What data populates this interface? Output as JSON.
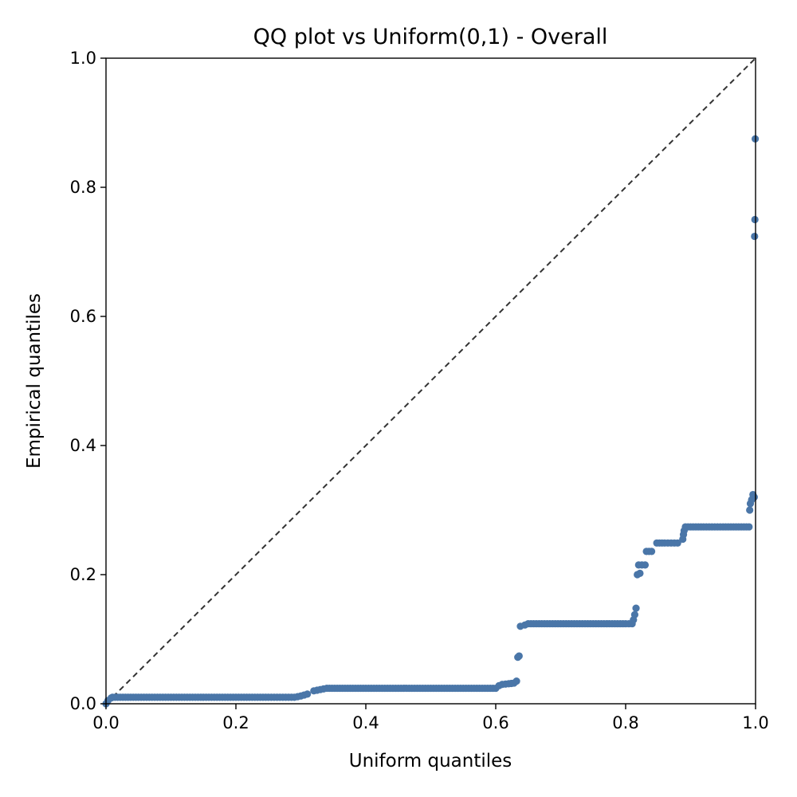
{
  "chart_data": {
    "type": "scatter",
    "title": "QQ plot vs Uniform(0,1) - Overall",
    "xlabel": "Uniform quantiles",
    "ylabel": "Empirical quantiles",
    "xlim": [
      0.0,
      1.0
    ],
    "ylim": [
      0.0,
      1.0
    ],
    "x_ticks": [
      "0.0",
      "0.2",
      "0.4",
      "0.6",
      "0.8",
      "1.0"
    ],
    "y_ticks": [
      "0.0",
      "0.2",
      "0.4",
      "0.6",
      "0.8",
      "1.0"
    ],
    "grid": false,
    "legend": false,
    "reference_line": {
      "from": [
        0,
        0
      ],
      "to": [
        1,
        1
      ],
      "style": "dashed",
      "color": "#333333"
    },
    "point_color": "#4a76a8",
    "series": [
      {
        "points": [
          [
            0.0,
            0.0
          ],
          [
            0.003,
            0.005
          ],
          [
            0.008,
            0.009
          ],
          [
            0.01,
            0.01
          ],
          [
            0.05,
            0.01
          ],
          [
            0.1,
            0.01
          ],
          [
            0.15,
            0.01
          ],
          [
            0.2,
            0.01
          ],
          [
            0.25,
            0.01
          ],
          [
            0.29,
            0.01
          ],
          [
            0.3,
            0.012
          ],
          [
            0.31,
            0.015
          ],
          [
            0.32,
            0.02
          ],
          [
            0.33,
            0.022
          ],
          [
            0.34,
            0.024
          ],
          [
            0.4,
            0.024
          ],
          [
            0.45,
            0.024
          ],
          [
            0.5,
            0.024
          ],
          [
            0.55,
            0.024
          ],
          [
            0.6,
            0.024
          ],
          [
            0.605,
            0.028
          ],
          [
            0.61,
            0.03
          ],
          [
            0.62,
            0.031
          ],
          [
            0.628,
            0.032
          ],
          [
            0.632,
            0.035
          ],
          [
            0.634,
            0.072
          ],
          [
            0.636,
            0.074
          ],
          [
            0.638,
            0.12
          ],
          [
            0.645,
            0.122
          ],
          [
            0.65,
            0.124
          ],
          [
            0.7,
            0.124
          ],
          [
            0.75,
            0.124
          ],
          [
            0.8,
            0.124
          ],
          [
            0.81,
            0.124
          ],
          [
            0.812,
            0.13
          ],
          [
            0.814,
            0.138
          ],
          [
            0.816,
            0.148
          ],
          [
            0.818,
            0.2
          ],
          [
            0.822,
            0.202
          ],
          [
            0.82,
            0.215
          ],
          [
            0.83,
            0.215
          ],
          [
            0.832,
            0.236
          ],
          [
            0.84,
            0.236
          ],
          [
            0.848,
            0.249
          ],
          [
            0.86,
            0.249
          ],
          [
            0.87,
            0.249
          ],
          [
            0.88,
            0.249
          ],
          [
            0.888,
            0.255
          ],
          [
            0.889,
            0.262
          ],
          [
            0.89,
            0.268
          ],
          [
            0.892,
            0.274
          ],
          [
            0.92,
            0.274
          ],
          [
            0.95,
            0.274
          ],
          [
            0.99,
            0.274
          ],
          [
            0.991,
            0.3
          ],
          [
            0.992,
            0.31
          ],
          [
            0.994,
            0.316
          ],
          [
            0.996,
            0.324
          ],
          [
            0.998,
            0.32
          ],
          [
            0.9985,
            0.724
          ],
          [
            0.999,
            0.75
          ],
          [
            0.9995,
            0.875
          ]
        ]
      }
    ]
  }
}
